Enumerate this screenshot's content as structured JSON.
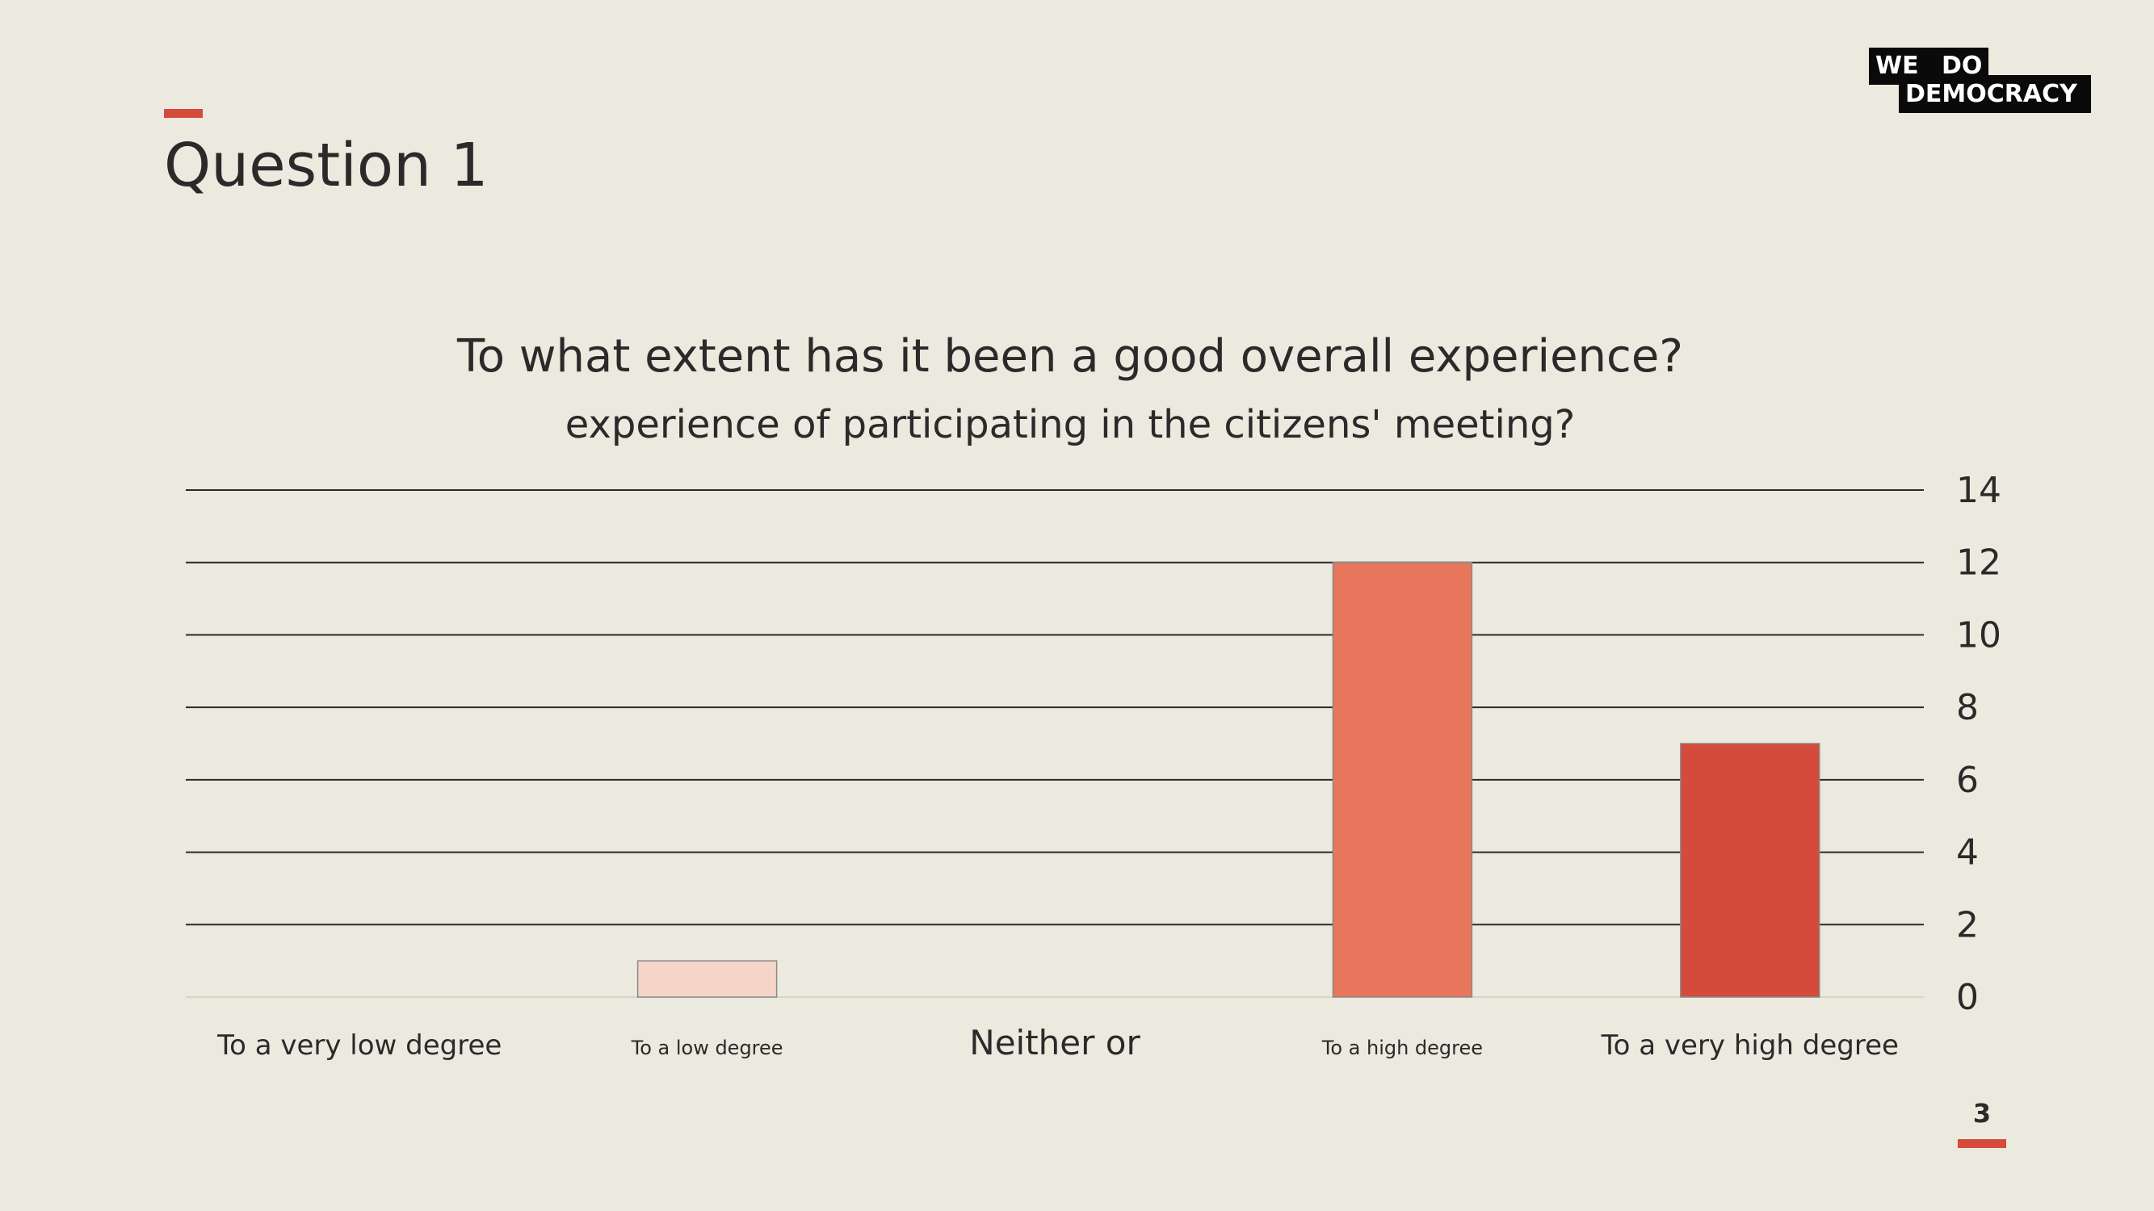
{
  "slide": {
    "title": "Question 1",
    "page_number": "3",
    "logo_text": {
      "line1": "WE DO",
      "line2": "DEMOCRACY"
    },
    "accent_color": "#D44B3B",
    "background": "#ECE9DE"
  },
  "chart_data": {
    "type": "bar",
    "title": "To what extent has it been a good overall experience?",
    "subtitle": "experience of participating in the citizens' meeting?",
    "categories": [
      "To a very low degree",
      "To a low degree",
      "Neither or",
      "To a high degree",
      "To a very high degree"
    ],
    "values": [
      0,
      1,
      0,
      12,
      7
    ],
    "colors": [
      "#F5D5C7",
      "#F5D5C7",
      "#F1A98F",
      "#E8765C",
      "#D44B3B"
    ],
    "ylim": [
      0,
      14
    ],
    "yticks": [
      0,
      2,
      4,
      6,
      8,
      10,
      12,
      14
    ],
    "y_axis_position": "right",
    "grid": true,
    "xlabel": "",
    "ylabel": ""
  }
}
